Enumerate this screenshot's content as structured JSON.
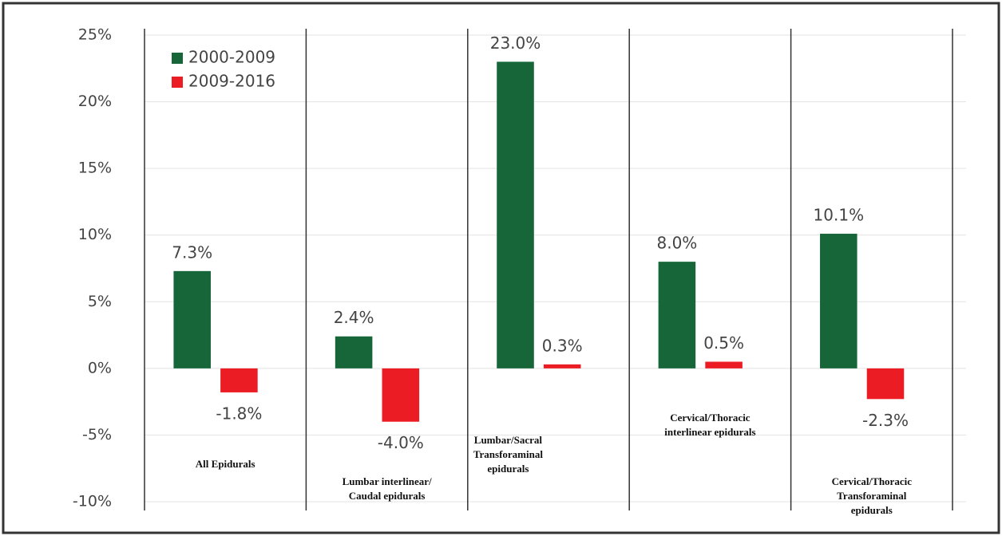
{
  "chart_data": {
    "type": "bar",
    "categories": [
      "All Epidurals",
      "Lumbar interlinear/\nCaudal epidurals",
      "Lumbar/Sacral\nTransforaminal\nepidurals",
      "Cervical/Thoracic\ninterlinear epidurals",
      "Cervical/Thoracic\nTransforaminal\nepidurals"
    ],
    "series": [
      {
        "name": "2000-2009",
        "color": "#17663a",
        "values": [
          7.3,
          2.4,
          23.0,
          8.0,
          10.1
        ],
        "value_labels": [
          "7.3%",
          "2.4%",
          "23.0%",
          "8.0%",
          "10.1%"
        ]
      },
      {
        "name": "2009-2016",
        "color": "#ec1c24",
        "values": [
          -1.8,
          -4.0,
          0.3,
          0.5,
          -2.3
        ],
        "value_labels": [
          "-1.8%",
          "-4.0%",
          "0.3%",
          "0.5%",
          "-2.3%"
        ]
      }
    ],
    "ylim": [
      -10,
      25
    ],
    "yticks": [
      {
        "value": -10,
        "label": "-10%"
      },
      {
        "value": -5,
        "label": "-5%"
      },
      {
        "value": 0,
        "label": "0%"
      },
      {
        "value": 5,
        "label": "5%"
      },
      {
        "value": 10,
        "label": "10%"
      },
      {
        "value": 15,
        "label": "15%"
      },
      {
        "value": 20,
        "label": "20%"
      },
      {
        "value": 25,
        "label": "25%"
      }
    ],
    "grid": true,
    "legend": "upper left"
  }
}
